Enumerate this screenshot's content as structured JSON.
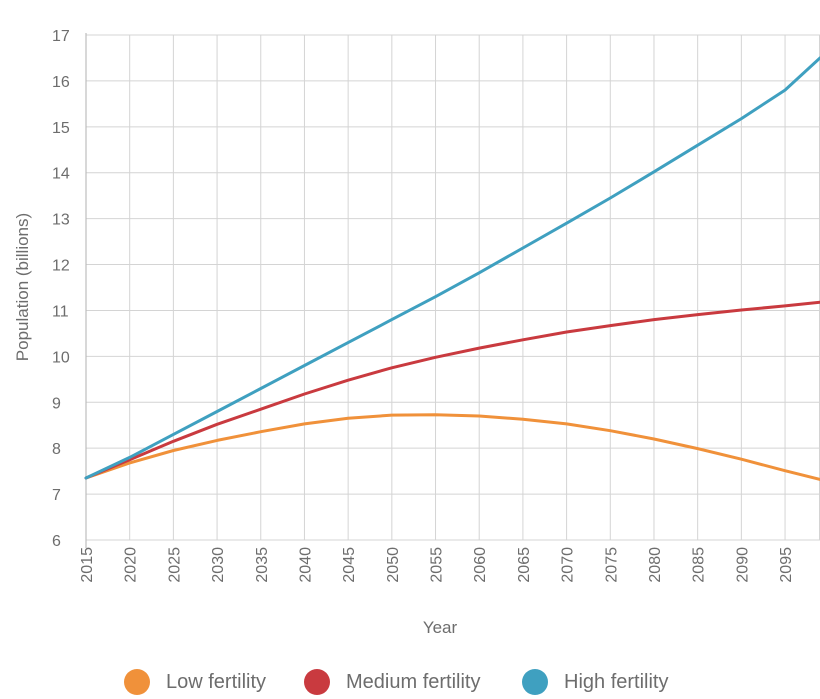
{
  "chart_data": {
    "type": "line",
    "title": "",
    "xlabel": "Year",
    "ylabel": "Population (billions)",
    "xlim": [
      2015,
      2099
    ],
    "ylim": [
      6,
      17
    ],
    "x_ticks": [
      2015,
      2020,
      2025,
      2030,
      2035,
      2040,
      2045,
      2050,
      2055,
      2060,
      2065,
      2070,
      2075,
      2080,
      2085,
      2090,
      2095
    ],
    "y_ticks": [
      6,
      7,
      8,
      9,
      10,
      11,
      12,
      13,
      14,
      15,
      16,
      17
    ],
    "grid": true,
    "legend_position": "bottom",
    "x": [
      2015,
      2020,
      2025,
      2030,
      2035,
      2040,
      2045,
      2050,
      2055,
      2060,
      2065,
      2070,
      2075,
      2080,
      2085,
      2090,
      2095,
      2099
    ],
    "series": [
      {
        "name": "Low fertility",
        "color": "#f0913a",
        "values": [
          7.35,
          7.68,
          7.95,
          8.17,
          8.36,
          8.53,
          8.65,
          8.72,
          8.73,
          8.7,
          8.63,
          8.53,
          8.38,
          8.2,
          7.99,
          7.76,
          7.51,
          7.32
        ]
      },
      {
        "name": "Medium fertility",
        "color": "#c93a3f",
        "values": [
          7.35,
          7.75,
          8.15,
          8.52,
          8.85,
          9.18,
          9.48,
          9.75,
          9.98,
          10.18,
          10.36,
          10.53,
          10.67,
          10.8,
          10.91,
          11.01,
          11.1,
          11.18
        ]
      },
      {
        "name": "High fertility",
        "color": "#3fa0c0",
        "values": [
          7.35,
          7.8,
          8.3,
          8.8,
          9.3,
          9.8,
          10.3,
          10.8,
          11.3,
          11.82,
          12.36,
          12.9,
          13.45,
          14.02,
          14.6,
          15.18,
          15.8,
          16.5
        ]
      }
    ]
  }
}
